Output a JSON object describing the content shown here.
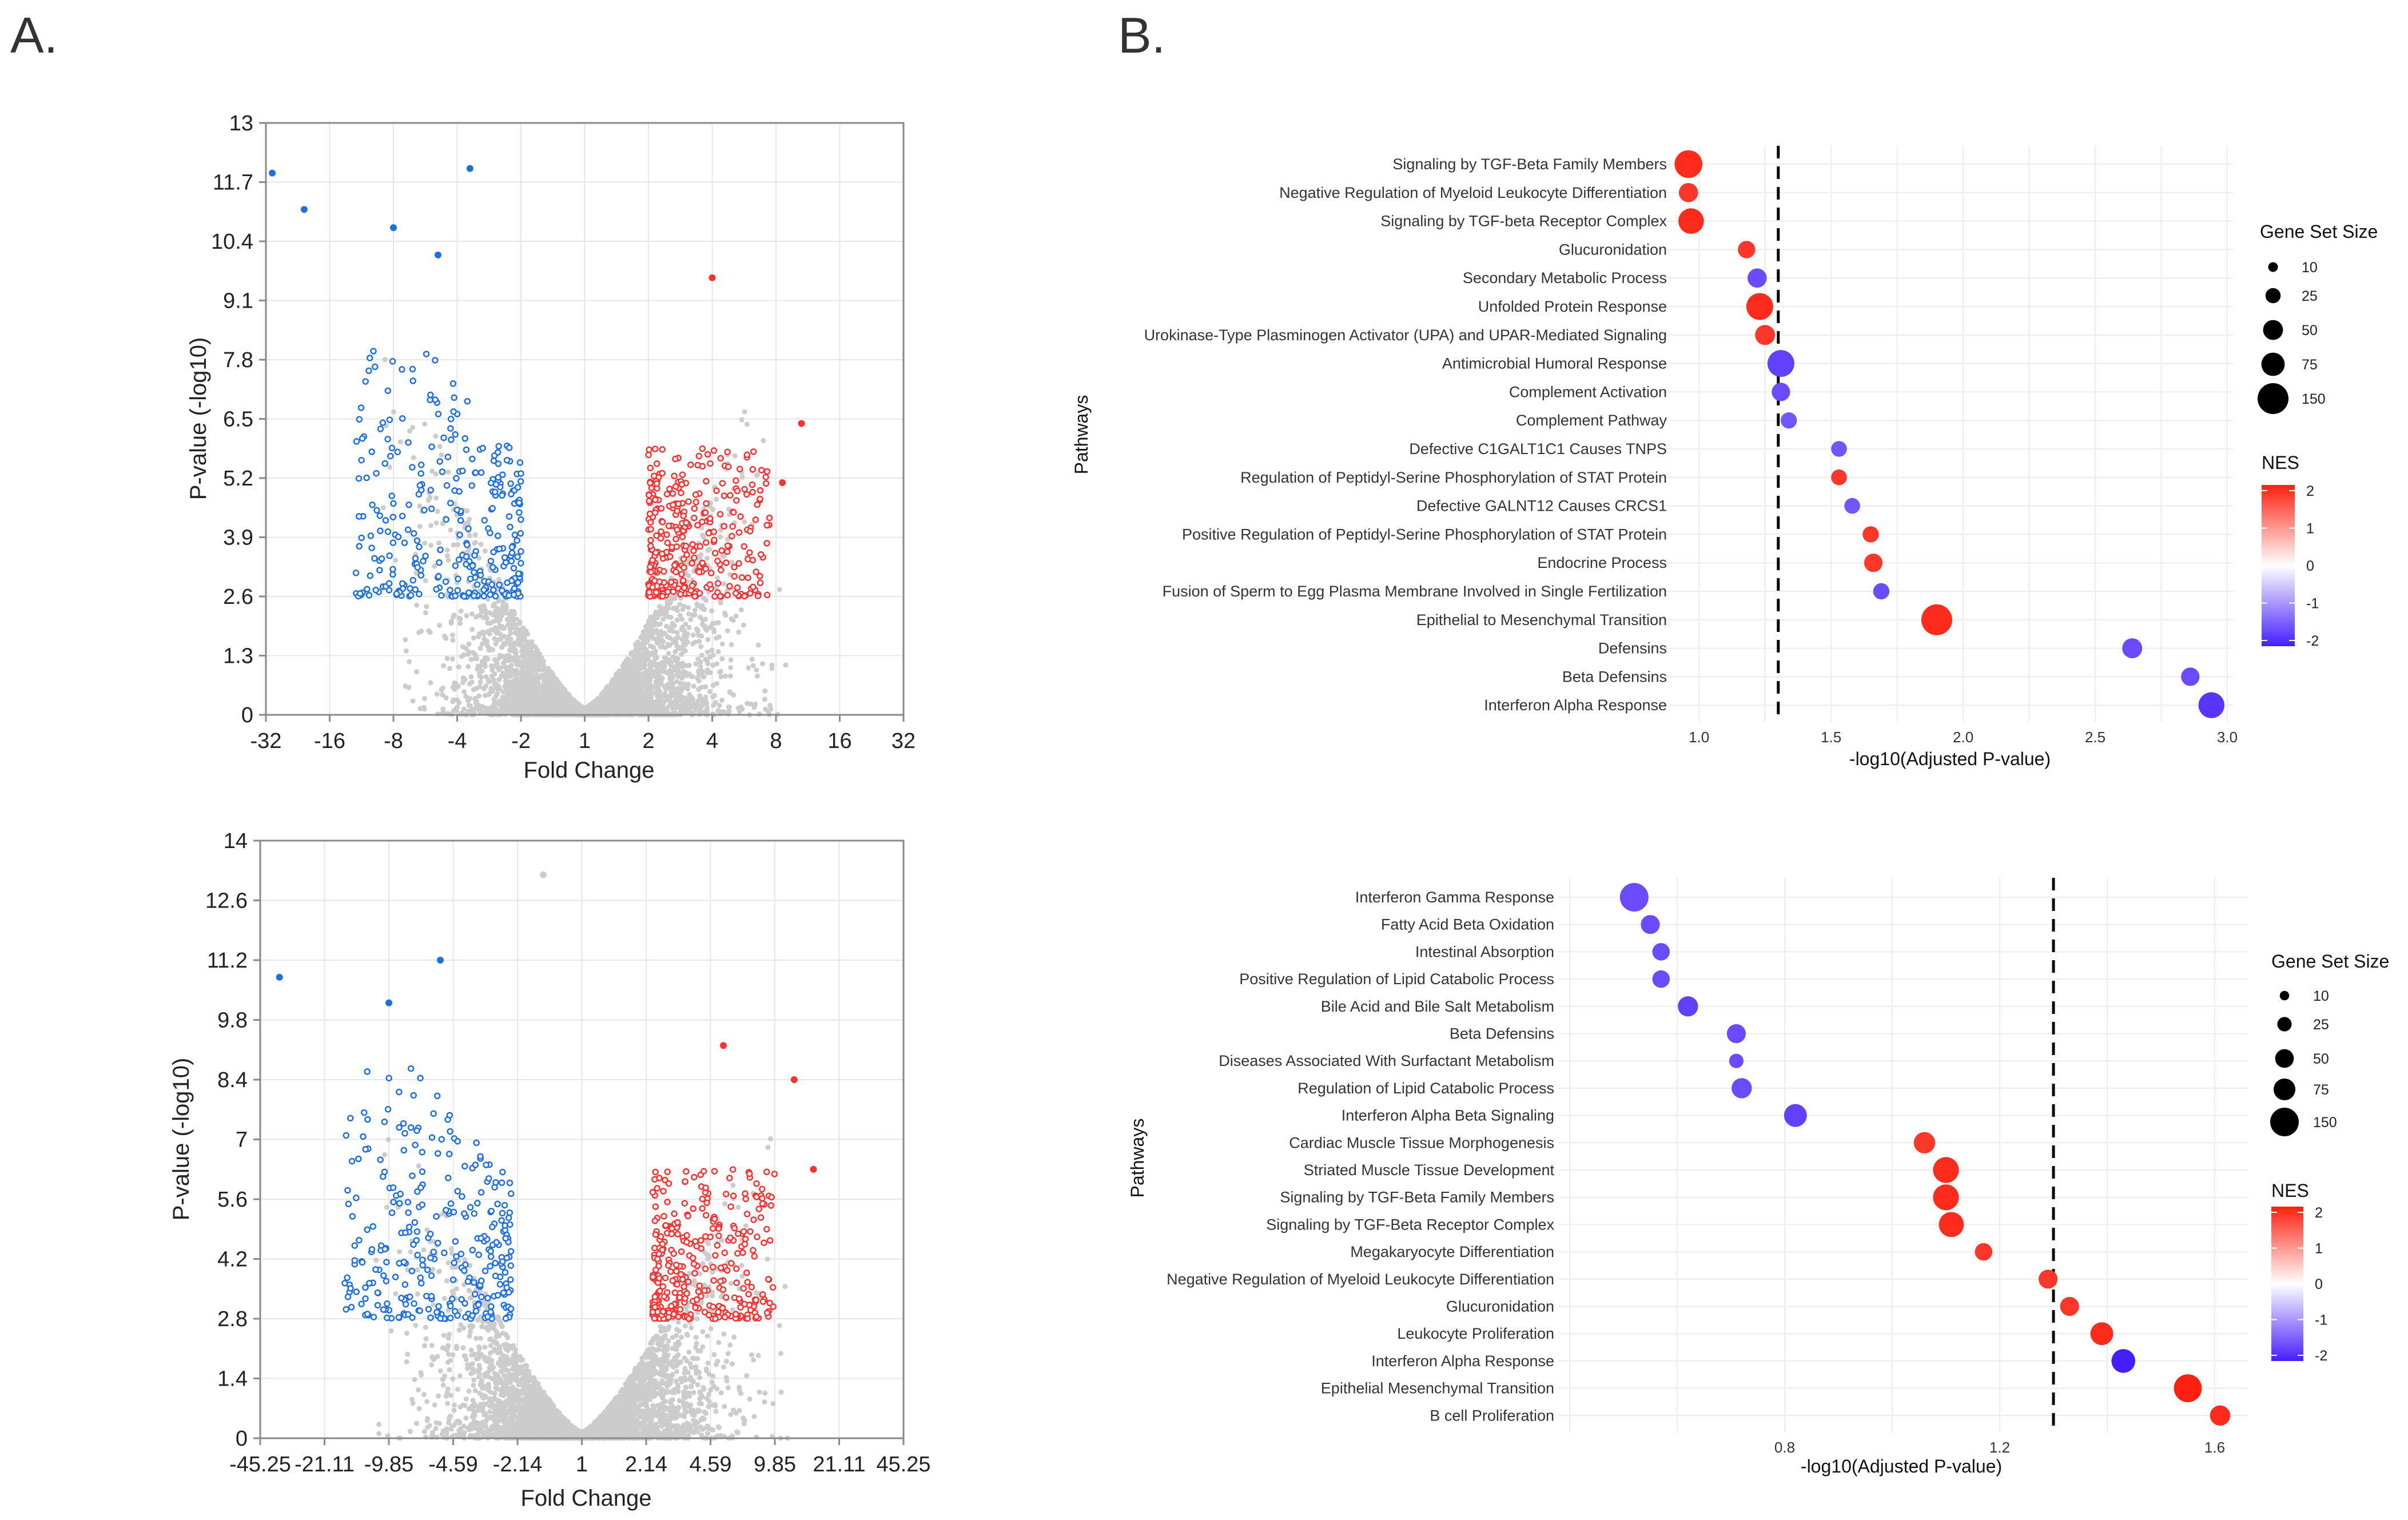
{
  "panel_labels": {
    "a": "A.",
    "b": "B."
  },
  "colors": {
    "up": "#ff3030",
    "down": "#1e6fe0",
    "ns": "#cccccc",
    "grid": "#e6e6e6",
    "frame": "#8a8a8a"
  },
  "chart_data": [
    {
      "type": "scatter",
      "subtype": "volcano",
      "xlabel": "Fold Change",
      "ylabel": "P-value (-log10)",
      "x_tick_labels": [
        "-32",
        "-16",
        "-8",
        "-4",
        "-2",
        "1",
        "2",
        "4",
        "8",
        "16",
        "32"
      ],
      "y_tick_labels": [
        "0",
        "1.3",
        "2.6",
        "3.9",
        "5.2",
        "6.5",
        "7.8",
        "9.1",
        "10.4",
        "11.7",
        "13"
      ],
      "ylim": [
        0,
        13
      ],
      "significance_threshold": 2.6,
      "fold_threshold_log2": 1,
      "counts": {
        "up": 330,
        "down": 300,
        "ns": 4200
      },
      "notable_points": [
        {
          "log2fc": -4.9,
          "p": 11.9,
          "group": "down"
        },
        {
          "log2fc": -4.4,
          "p": 11.1,
          "group": "down"
        },
        {
          "log2fc": -3.0,
          "p": 10.7,
          "group": "down"
        },
        {
          "log2fc": -2.3,
          "p": 10.1,
          "group": "down"
        },
        {
          "log2fc": -1.8,
          "p": 12.0,
          "group": "down"
        },
        {
          "log2fc": 2.0,
          "p": 9.6,
          "group": "up"
        },
        {
          "log2fc": 3.4,
          "p": 6.4,
          "group": "up"
        },
        {
          "log2fc": 3.1,
          "p": 5.1,
          "group": "up"
        }
      ]
    },
    {
      "type": "scatter",
      "subtype": "volcano",
      "xlabel": "Fold Change",
      "ylabel": "P-value (-log10)",
      "x_tick_labels": [
        "-45.25",
        "-21.11",
        "-9.85",
        "-4.59",
        "-2.14",
        "1",
        "2.14",
        "4.59",
        "9.85",
        "21.11",
        "45.25"
      ],
      "y_tick_labels": [
        "0",
        "1.4",
        "2.8",
        "4.2",
        "5.6",
        "7",
        "8.4",
        "9.8",
        "11.2",
        "12.6",
        "14"
      ],
      "ylim": [
        0,
        14
      ],
      "significance_threshold": 2.8,
      "fold_threshold_log2": 1.1,
      "counts": {
        "up": 330,
        "down": 300,
        "ns": 4200
      },
      "notable_points": [
        {
          "log2fc": -4.7,
          "p": 10.8,
          "group": "down"
        },
        {
          "log2fc": -3.0,
          "p": 10.2,
          "group": "down"
        },
        {
          "log2fc": -2.2,
          "p": 11.2,
          "group": "down"
        },
        {
          "log2fc": 2.2,
          "p": 9.2,
          "group": "up"
        },
        {
          "log2fc": 3.3,
          "p": 8.4,
          "group": "up"
        },
        {
          "log2fc": 3.6,
          "p": 6.3,
          "group": "up"
        },
        {
          "log2fc": -0.6,
          "p": 13.2,
          "group": "ns"
        }
      ]
    },
    {
      "type": "scatter",
      "subtype": "dotplot",
      "xlabel": "-log10(Adjusted P-value)",
      "ylabel": "Pathways",
      "xlim": [
        0.9,
        3.0
      ],
      "x_ticks": [
        1.0,
        1.5,
        2.0,
        2.5,
        3.0
      ],
      "x_tick_labels": [
        "1.0",
        "1.5",
        "2.0",
        "2.5",
        "3.0"
      ],
      "threshold": 1.3,
      "size_legend": {
        "title": "Gene Set Size",
        "values": [
          10,
          25,
          50,
          75,
          150
        ],
        "labels": [
          "10",
          "25",
          "50",
          "75",
          "150"
        ]
      },
      "color_legend": {
        "title": "NES",
        "range": [
          -2,
          2
        ],
        "labels": [
          "2",
          "1",
          "0",
          "-1",
          "-2"
        ]
      },
      "pathways": [
        {
          "name": "Signaling by TGF-Beta Family Members",
          "x": 0.96,
          "size": 110,
          "nes": 1.9
        },
        {
          "name": "Negative Regulation of Myeloid Leukocyte Differentiation",
          "x": 0.96,
          "size": 35,
          "nes": 1.8
        },
        {
          "name": "Signaling by TGF-beta Receptor Complex",
          "x": 0.97,
          "size": 85,
          "nes": 1.9
        },
        {
          "name": "Glucuronidation",
          "x": 1.18,
          "size": 25,
          "nes": 1.8
        },
        {
          "name": "Secondary Metabolic Process",
          "x": 1.22,
          "size": 35,
          "nes": -1.6
        },
        {
          "name": "Unfolded Protein Response",
          "x": 1.23,
          "size": 100,
          "nes": 1.9
        },
        {
          "name": "Urokinase-Type Plasminogen Activator (UPA) and UPAR-Mediated Signaling",
          "x": 1.25,
          "size": 40,
          "nes": 1.8
        },
        {
          "name": "Antimicrobial Humoral Response",
          "x": 1.31,
          "size": 100,
          "nes": -1.7
        },
        {
          "name": "Complement Activation",
          "x": 1.31,
          "size": 30,
          "nes": -1.6
        },
        {
          "name": "Complement Pathway",
          "x": 1.34,
          "size": 20,
          "nes": -1.5
        },
        {
          "name": "Defective C1GALT1C1 Causes TNPS",
          "x": 1.53,
          "size": 18,
          "nes": -1.5
        },
        {
          "name": "Regulation of Peptidyl-Serine Phosphorylation of STAT Protein",
          "x": 1.53,
          "size": 18,
          "nes": 1.8
        },
        {
          "name": "Defective GALNT12 Causes CRCS1",
          "x": 1.58,
          "size": 18,
          "nes": -1.5
        },
        {
          "name": "Positive Regulation of Peptidyl-Serine Phosphorylation of STAT Protein",
          "x": 1.65,
          "size": 20,
          "nes": 1.8
        },
        {
          "name": "Endocrine Process",
          "x": 1.66,
          "size": 30,
          "nes": 1.8
        },
        {
          "name": "Fusion of Sperm to Egg Plasma Membrane Involved in Single Fertilization",
          "x": 1.69,
          "size": 20,
          "nes": -1.6
        },
        {
          "name": "Epithelial to Mesenchymal Transition",
          "x": 1.9,
          "size": 150,
          "nes": 1.9
        },
        {
          "name": "Defensins",
          "x": 2.64,
          "size": 40,
          "nes": -1.6
        },
        {
          "name": "Beta Defensins",
          "x": 2.86,
          "size": 30,
          "nes": -1.6
        },
        {
          "name": "Interferon Alpha Response",
          "x": 2.94,
          "size": 90,
          "nes": -1.8
        }
      ]
    },
    {
      "type": "scatter",
      "subtype": "dotplot",
      "xlabel": "-log10(Adjusted P-value)",
      "ylabel": "Pathways",
      "xlim": [
        0.4,
        1.65
      ],
      "x_ticks": [
        0.8,
        1.2,
        1.6
      ],
      "x_tick_labels": [
        "0.8",
        "1.2",
        "1.6"
      ],
      "threshold": 1.3,
      "size_legend": {
        "title": "Gene Set Size",
        "values": [
          10,
          25,
          50,
          75,
          150
        ],
        "labels": [
          "10",
          "25",
          "50",
          "75",
          "150"
        ]
      },
      "color_legend": {
        "title": "NES",
        "range": [
          -2,
          2
        ],
        "labels": [
          "2",
          "1",
          "0",
          "-1",
          "-2"
        ]
      },
      "pathways": [
        {
          "name": "Interferon Gamma Response",
          "x": 0.52,
          "size": 150,
          "nes": -1.6
        },
        {
          "name": "Fatty Acid Beta Oxidation",
          "x": 0.55,
          "size": 40,
          "nes": -1.6
        },
        {
          "name": "Intestinal Absorption",
          "x": 0.57,
          "size": 30,
          "nes": -1.6
        },
        {
          "name": "Positive Regulation of Lipid Catabolic Process",
          "x": 0.57,
          "size": 30,
          "nes": -1.6
        },
        {
          "name": "Bile Acid and Bile Salt Metabolism",
          "x": 0.62,
          "size": 50,
          "nes": -1.7
        },
        {
          "name": "Beta Defensins",
          "x": 0.71,
          "size": 40,
          "nes": -1.6
        },
        {
          "name": "Diseases Associated With Surfactant Metabolism",
          "x": 0.71,
          "size": 15,
          "nes": -1.6
        },
        {
          "name": "Regulation of Lipid Catabolic Process",
          "x": 0.72,
          "size": 50,
          "nes": -1.6
        },
        {
          "name": "Interferon Alpha Beta Signaling",
          "x": 0.82,
          "size": 75,
          "nes": -1.7
        },
        {
          "name": "Cardiac Muscle Tissue Morphogenesis",
          "x": 1.06,
          "size": 60,
          "nes": 1.8
        },
        {
          "name": "Striated Muscle Tissue Development",
          "x": 1.1,
          "size": 110,
          "nes": 1.9
        },
        {
          "name": "Signaling by TGF-Beta Family Members",
          "x": 1.1,
          "size": 110,
          "nes": 1.9
        },
        {
          "name": "Signaling by TGF-Beta Receptor Complex",
          "x": 1.11,
          "size": 100,
          "nes": 1.9
        },
        {
          "name": "Megakaryocyte Differentiation",
          "x": 1.17,
          "size": 30,
          "nes": 1.8
        },
        {
          "name": "Negative Regulation of Myeloid Leukocyte Differentiation",
          "x": 1.29,
          "size": 40,
          "nes": 1.8
        },
        {
          "name": "Glucuronidation",
          "x": 1.33,
          "size": 40,
          "nes": 1.8
        },
        {
          "name": "Leukocyte Proliferation",
          "x": 1.39,
          "size": 75,
          "nes": 1.9
        },
        {
          "name": "Interferon Alpha Response",
          "x": 1.43,
          "size": 85,
          "nes": -2.0
        },
        {
          "name": "Epithelial Mesenchymal Transition",
          "x": 1.55,
          "size": 140,
          "nes": 2.0
        },
        {
          "name": "B cell Proliferation",
          "x": 1.61,
          "size": 50,
          "nes": 1.9
        }
      ]
    }
  ]
}
